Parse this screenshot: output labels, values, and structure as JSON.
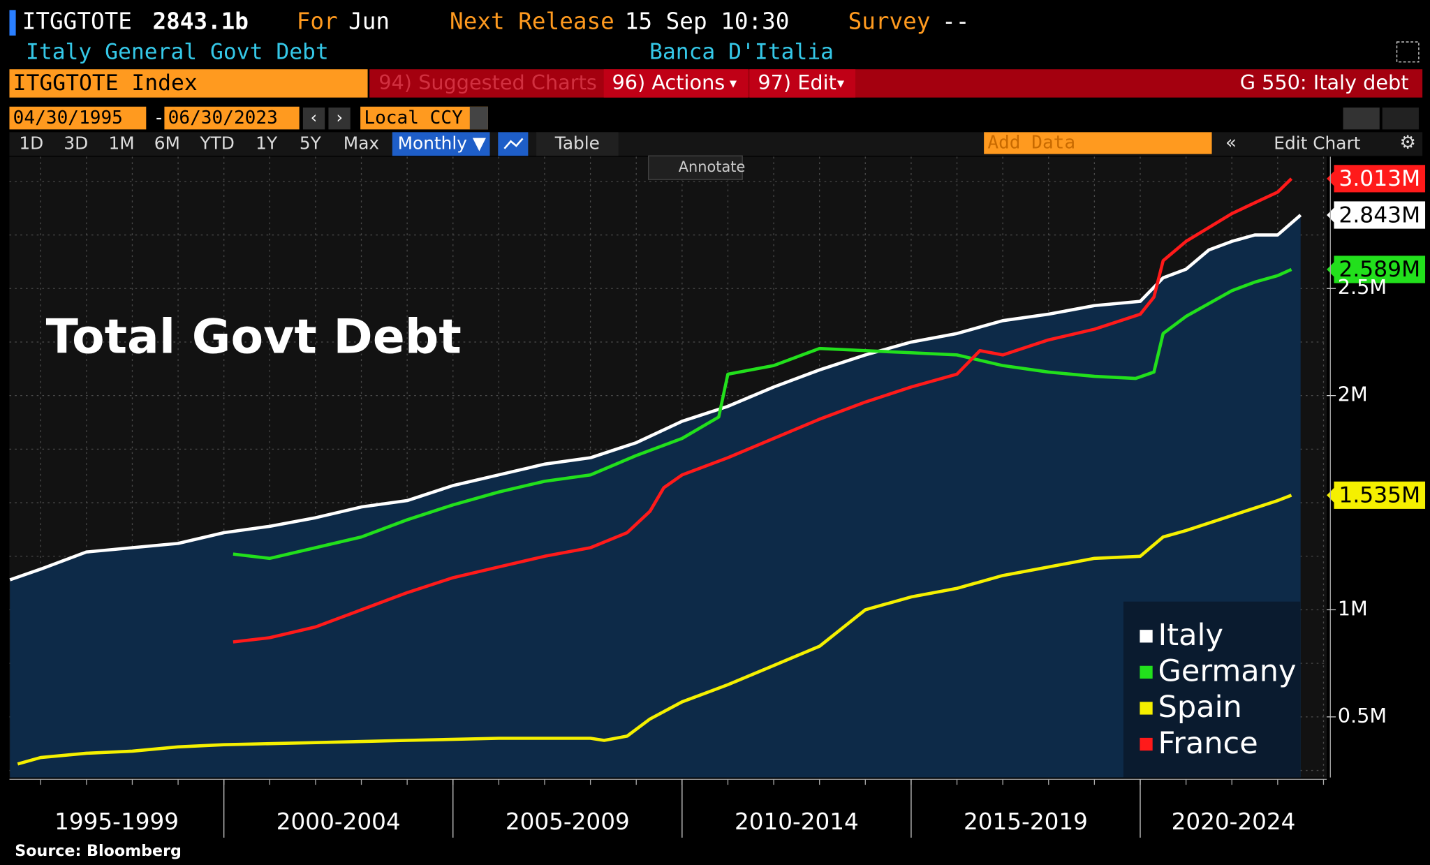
{
  "header": {
    "ticker": "ITGGTOTE",
    "value": "2843.1b",
    "for_label": "For",
    "for_value": "Jun",
    "next_label": "Next Release",
    "next_value": "15 Sep 10:30",
    "survey_label": "Survey",
    "survey_value": "--",
    "description": "Italy General Govt Debt",
    "source": "Banca D'Italia"
  },
  "toolbar": {
    "security": "ITGGTOTE Index",
    "suggested": "94) Suggested Charts",
    "actions": "96) Actions",
    "edit": "97) Edit",
    "chart_name": "G 550: Italy debt"
  },
  "controls": {
    "start_date": "04/30/1995",
    "end_date": "06/30/2023",
    "currency": "Local CCY",
    "periods": [
      "1D",
      "3D",
      "1M",
      "6M",
      "YTD",
      "1Y",
      "5Y",
      "Max"
    ],
    "frequency": "Monthly ▼",
    "table": "Table",
    "add_data": "Add Data",
    "edit_chart": "Edit Chart",
    "annotate": "Annotate"
  },
  "chart_data": {
    "type": "line",
    "title": "Total Govt Debt",
    "xlim": [
      1995.318,
      2024.07
    ],
    "categories": [
      "1995-1999",
      "2000-2004",
      "2005-2009",
      "2010-2014",
      "2015-2019",
      "2020-2024"
    ],
    "category_dividers": [
      2000,
      2005,
      2010,
      2015,
      2020
    ],
    "minor_xticks": [
      1996,
      1997,
      1998,
      1999,
      2000,
      2001,
      2002,
      2003,
      2004,
      2005,
      2006,
      2007,
      2008,
      2009,
      2010,
      2011,
      2012,
      2013,
      2014,
      2015,
      2016,
      2017,
      2018,
      2019,
      2020,
      2021,
      2022,
      2023,
      2024
    ],
    "ylim": [
      0.217,
      3.115
    ],
    "yticks": [
      {
        "value": 0.5,
        "label": "0.5M"
      },
      {
        "value": 1,
        "label": "1M"
      },
      {
        "value": 2,
        "label": "2M"
      },
      {
        "value": 2.5,
        "label": "2.5M"
      }
    ],
    "minor_yticks": [
      0.25,
      0.75,
      1.25,
      1.5,
      1.75,
      2.25,
      2.75,
      3
    ],
    "grid": true,
    "legend": "lower right",
    "series": [
      {
        "name": "Italy",
        "color": "#ffffff",
        "area_color": "#0d2a48",
        "last_label": "2.843M",
        "x": [
          1995.33,
          1996,
          1997,
          1998,
          1999,
          2000,
          2001,
          2002,
          2003,
          2004,
          2005,
          2006,
          2007,
          2008,
          2009,
          2010,
          2011,
          2012,
          2013,
          2014,
          2015,
          2016,
          2017,
          2018,
          2019,
          2020,
          2020.5,
          2021,
          2021.5,
          2022,
          2022.5,
          2023,
          2023.5
        ],
        "values": [
          1.14,
          1.19,
          1.27,
          1.29,
          1.31,
          1.36,
          1.39,
          1.43,
          1.48,
          1.51,
          1.58,
          1.63,
          1.68,
          1.71,
          1.78,
          1.88,
          1.95,
          2.04,
          2.12,
          2.19,
          2.25,
          2.29,
          2.35,
          2.38,
          2.42,
          2.44,
          2.55,
          2.59,
          2.68,
          2.72,
          2.75,
          2.75,
          2.843
        ]
      },
      {
        "name": "Germany",
        "color": "#22e01c",
        "last_label": "2.589M",
        "x": [
          2000.2,
          2001,
          2002,
          2003,
          2004,
          2005,
          2006,
          2007,
          2008,
          2009,
          2010,
          2010.8,
          2011,
          2012,
          2013,
          2014,
          2015,
          2016,
          2017,
          2018,
          2019,
          2019.9,
          2020.3,
          2020.5,
          2021,
          2022,
          2022.5,
          2023,
          2023.3
        ],
        "values": [
          1.26,
          1.24,
          1.29,
          1.34,
          1.42,
          1.49,
          1.55,
          1.6,
          1.63,
          1.72,
          1.8,
          1.9,
          2.1,
          2.14,
          2.22,
          2.21,
          2.2,
          2.19,
          2.14,
          2.11,
          2.09,
          2.08,
          2.11,
          2.29,
          2.37,
          2.49,
          2.53,
          2.56,
          2.589
        ]
      },
      {
        "name": "Spain",
        "color": "#f5f000",
        "last_label": "1.535M",
        "x": [
          1995.5,
          1996,
          1997,
          1998,
          1999,
          2000,
          2002,
          2004,
          2006,
          2008,
          2008.3,
          2008.8,
          2009.3,
          2010,
          2011,
          2012,
          2013,
          2014,
          2015,
          2016,
          2017,
          2018,
          2019,
          2020,
          2020.5,
          2021,
          2022,
          2023,
          2023.3
        ],
        "values": [
          0.28,
          0.31,
          0.33,
          0.34,
          0.36,
          0.37,
          0.38,
          0.39,
          0.4,
          0.4,
          0.39,
          0.41,
          0.49,
          0.57,
          0.65,
          0.74,
          0.83,
          1.0,
          1.06,
          1.1,
          1.16,
          1.2,
          1.24,
          1.25,
          1.34,
          1.37,
          1.44,
          1.51,
          1.535
        ]
      },
      {
        "name": "France",
        "color": "#ff1a1a",
        "last_label": "3.013M",
        "x": [
          2000.2,
          2001,
          2002,
          2003,
          2004,
          2005,
          2006,
          2007,
          2008,
          2008.8,
          2009.3,
          2009.6,
          2010,
          2011,
          2012,
          2013,
          2014,
          2015,
          2016,
          2016.5,
          2017,
          2018,
          2019,
          2020,
          2020.3,
          2020.5,
          2021,
          2022,
          2022.5,
          2023,
          2023.3
        ],
        "values": [
          0.85,
          0.87,
          0.92,
          1.0,
          1.08,
          1.15,
          1.2,
          1.25,
          1.29,
          1.36,
          1.46,
          1.57,
          1.63,
          1.71,
          1.8,
          1.89,
          1.97,
          2.04,
          2.1,
          2.21,
          2.19,
          2.26,
          2.31,
          2.38,
          2.46,
          2.63,
          2.72,
          2.85,
          2.9,
          2.95,
          3.013
        ]
      }
    ]
  },
  "footer": {
    "source": "Source: Bloomberg"
  }
}
